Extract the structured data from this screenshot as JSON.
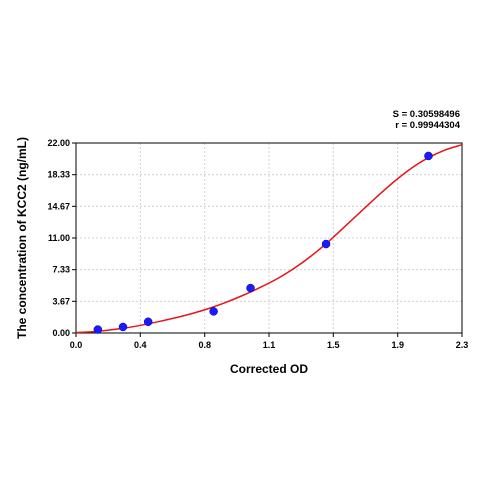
{
  "chart_data": {
    "type": "scatter",
    "xlabel": "Corrected OD",
    "ylabel": "The concentration of KCC2 (ng/mL)",
    "xlim": [
      0,
      2.3
    ],
    "ylim": [
      0,
      22
    ],
    "x_ticks": [
      "0.0",
      "0.4",
      "0.8",
      "1.1",
      "1.5",
      "1.9",
      "2.3"
    ],
    "x_tick_values": [
      0,
      0.383,
      0.767,
      1.15,
      1.533,
      1.917,
      2.3
    ],
    "y_ticks": [
      "0.00",
      "3.67",
      "7.33",
      "11.00",
      "14.67",
      "18.33",
      "22.00"
    ],
    "y_tick_values": [
      0,
      3.67,
      7.33,
      11.0,
      14.67,
      18.33,
      22.0
    ],
    "grid": true,
    "series": [
      {
        "type": "scatter",
        "x": [
          0.13,
          0.28,
          0.43,
          0.82,
          1.04,
          1.49,
          2.1
        ],
        "y": [
          0.4,
          0.7,
          1.3,
          2.5,
          5.2,
          10.3,
          20.5
        ],
        "color": "#1a1aff"
      },
      {
        "type": "line",
        "x": [
          0.0,
          0.1,
          0.2,
          0.3,
          0.4,
          0.5,
          0.6,
          0.7,
          0.8,
          0.9,
          1.0,
          1.1,
          1.2,
          1.3,
          1.4,
          1.5,
          1.6,
          1.7,
          1.8,
          1.9,
          2.0,
          2.1,
          2.2,
          2.3
        ],
        "y": [
          0.05,
          0.15,
          0.35,
          0.6,
          0.95,
          1.35,
          1.8,
          2.3,
          2.9,
          3.6,
          4.4,
          5.3,
          6.3,
          7.5,
          8.9,
          10.5,
          12.3,
          14.1,
          15.9,
          17.6,
          19.1,
          20.3,
          21.2,
          21.8
        ],
        "color": "#e8141c"
      }
    ],
    "annotations": [
      "S = 0.30598496",
      "r = 0.99944304"
    ]
  }
}
